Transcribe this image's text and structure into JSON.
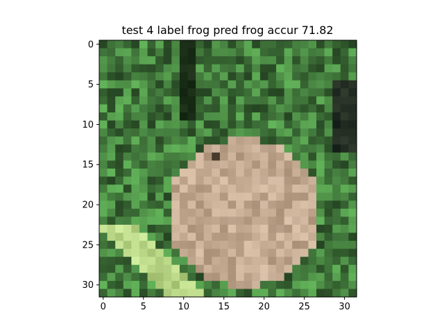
{
  "title": "test 4 label frog pred frog accur 71.82",
  "plot": {
    "x_ticks": [
      "0",
      "5",
      "10",
      "15",
      "20",
      "25",
      "30"
    ],
    "y_ticks": [
      "0",
      "5",
      "10",
      "15",
      "20",
      "25",
      "30"
    ],
    "x_range": [
      -0.5,
      31.5
    ],
    "y_range": [
      31.5,
      -0.5
    ],
    "grid": 32
  },
  "colors": {
    "frame": "#000000",
    "frog": "#a89078",
    "grass_dark": "#2e4a2a",
    "grass_light": "#b8d690"
  }
}
